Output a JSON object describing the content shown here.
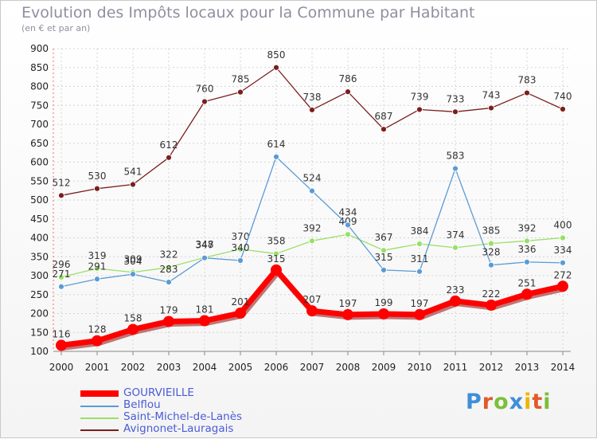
{
  "title": "Evolution des Impôts locaux pour la Commune par Habitant",
  "subtitle": "(en € et par an)",
  "logo_text": "Proxiti",
  "colors": {
    "gourvieille": "#ff0000",
    "belflou": "#5a9bd5",
    "saint_michel": "#99e066",
    "avignonet": "#7a1f1f",
    "grid": "#d4d4d4",
    "axis": "#ff6666",
    "legend_text": "#4a5cd6"
  },
  "chart_data": {
    "type": "line",
    "title": "Evolution des Impôts locaux pour la Commune par Habitant",
    "subtitle": "(en € et par an)",
    "xlabel": "",
    "ylabel": "",
    "x": [
      "2000",
      "2001",
      "2002",
      "2003",
      "2004",
      "2005",
      "2006",
      "2007",
      "2008",
      "2009",
      "2010",
      "2011",
      "2012",
      "2013",
      "2014"
    ],
    "ylim": [
      100,
      900
    ],
    "yticks": [
      100,
      150,
      200,
      250,
      300,
      350,
      400,
      450,
      500,
      550,
      600,
      650,
      700,
      750,
      800,
      850,
      900
    ],
    "grid": true,
    "legend_position": "bottom-left",
    "series": [
      {
        "name": "GOURVIEILLE",
        "values": [
          116,
          128,
          158,
          179,
          181,
          201,
          315,
          207,
          197,
          199,
          197,
          233,
          222,
          251,
          272
        ]
      },
      {
        "name": "Belflou",
        "values": [
          271,
          291,
          304,
          283,
          347,
          340,
          614,
          524,
          434,
          315,
          311,
          583,
          328,
          336,
          334
        ]
      },
      {
        "name": "Saint-Michel-de-Lanès",
        "values": [
          296,
          319,
          309,
          322,
          348,
          370,
          358,
          392,
          409,
          367,
          384,
          374,
          385,
          392,
          400
        ]
      },
      {
        "name": "Avignonet-Lauragais",
        "values": [
          512,
          530,
          541,
          612,
          760,
          785,
          850,
          738,
          786,
          687,
          739,
          733,
          743,
          783,
          740
        ]
      }
    ]
  },
  "legend": [
    {
      "label": "GOURVIEILLE"
    },
    {
      "label": "Belflou"
    },
    {
      "label": "Saint-Michel-de-Lanès"
    },
    {
      "label": "Avignonet-Lauragais"
    }
  ]
}
